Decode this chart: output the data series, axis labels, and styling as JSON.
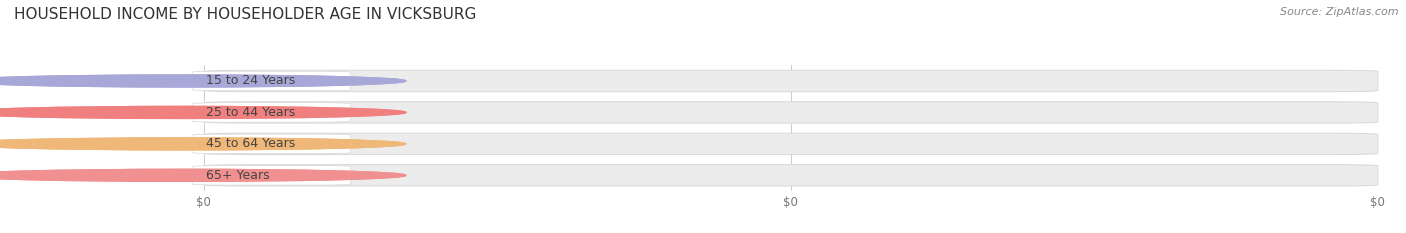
{
  "title": "HOUSEHOLD INCOME BY HOUSEHOLDER AGE IN VICKSBURG",
  "source_text": "Source: ZipAtlas.com",
  "categories": [
    "15 to 24 Years",
    "25 to 44 Years",
    "45 to 64 Years",
    "65+ Years"
  ],
  "values": [
    0,
    0,
    0,
    0
  ],
  "bar_colors": [
    "#a8a8d8",
    "#f08080",
    "#f0b878",
    "#f09090"
  ],
  "background_color": "#ffffff",
  "track_color": "#ececec",
  "track_edge_color": "#d8d8d8",
  "title_fontsize": 11,
  "source_fontsize": 8,
  "label_fontsize": 9,
  "tick_fontsize": 8.5,
  "tick_label_color": "#777777",
  "label_text_color": "#444444",
  "x_tick_labels": [
    "$0",
    "$0",
    "$0"
  ],
  "circle_colors": [
    "#a8a8d8",
    "#f08080",
    "#f0b878",
    "#f09090"
  ]
}
